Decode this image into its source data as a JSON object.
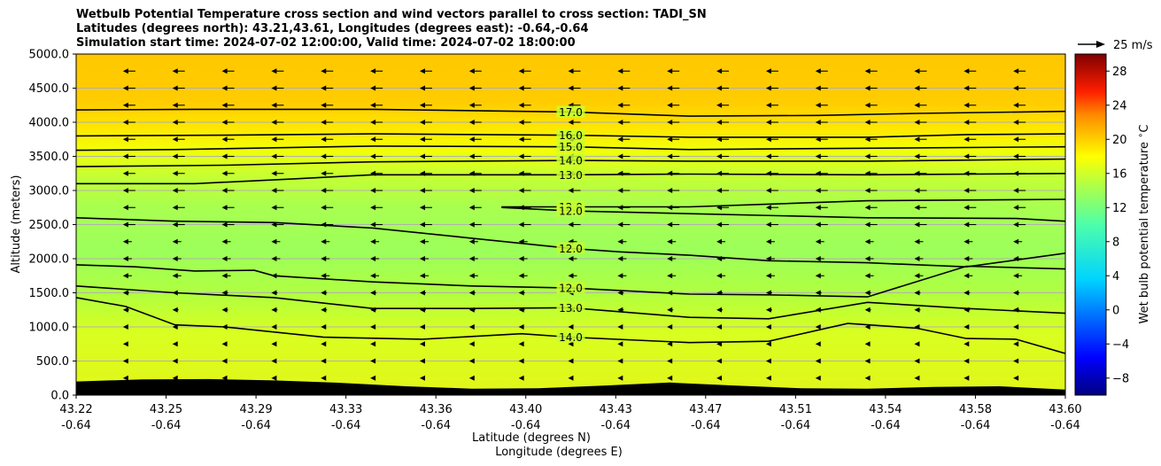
{
  "chart_data": {
    "type": "heatmap",
    "title_lines": [
      "Wetbulb Potential Temperature cross section and wind vectors parallel to cross section: TADI_SN",
      "Latitudes (degrees north): 43.21,43.61, Longitudes (degrees east): -0.64,-0.64",
      "Simulation start time: 2024-07-02 12:00:00, Valid time: 2024-07-02 18:00:00"
    ],
    "ylabel": "Altitude (meters)",
    "xlabel_lines": [
      "Latitude (degrees N)",
      "Longitude (degrees E)"
    ],
    "ylim": [
      0,
      5000
    ],
    "y_ticks": [
      "0.0",
      "500.0",
      "1000.0",
      "1500.0",
      "2000.0",
      "2500.0",
      "3000.0",
      "3500.0",
      "4000.0",
      "4500.0",
      "5000.0"
    ],
    "x_ticks_lat": [
      "43.22",
      "43.25",
      "43.29",
      "43.33",
      "43.36",
      "43.40",
      "43.43",
      "43.47",
      "43.51",
      "43.54",
      "43.58",
      "43.60"
    ],
    "x_ticks_lon": [
      "-0.64",
      "-0.64",
      "-0.64",
      "-0.64",
      "-0.64",
      "-0.64",
      "-0.64",
      "-0.64",
      "-0.64",
      "-0.64",
      "-0.64",
      "-0.64"
    ],
    "grid": "horizontal",
    "colorbar": {
      "label": "Wet bulb potential temperature $^\\circ$C",
      "min": -10,
      "max": 30,
      "tick_values": [
        -8,
        -4,
        0,
        4,
        8,
        12,
        16,
        20,
        24,
        28
      ],
      "tick_labels": [
        "−8",
        "−4",
        "0",
        "4",
        "8",
        "12",
        "16",
        "20",
        "24",
        "28"
      ]
    },
    "wind_key": {
      "label": "25 m/s",
      "speed": 25
    },
    "contours": [
      {
        "label": "17.0",
        "x": [
          0,
          0.12,
          0.3,
          0.5,
          0.62,
          0.75,
          0.85,
          1
        ],
        "y": [
          4180,
          4190,
          4190,
          4150,
          4090,
          4100,
          4130,
          4160
        ]
      },
      {
        "label": "16.0",
        "x": [
          0,
          0.15,
          0.3,
          0.5,
          0.62,
          0.8,
          0.9,
          1
        ],
        "y": [
          3800,
          3810,
          3830,
          3810,
          3780,
          3780,
          3820,
          3830
        ]
      },
      {
        "label": "15.0",
        "x": [
          0,
          0.1,
          0.3,
          0.5,
          0.62,
          0.8,
          1
        ],
        "y": [
          3590,
          3600,
          3650,
          3640,
          3600,
          3620,
          3640
        ]
      },
      {
        "label": "14.0",
        "x": [
          0,
          0.15,
          0.3,
          0.5,
          0.62,
          0.8,
          1
        ],
        "y": [
          3350,
          3370,
          3420,
          3440,
          3430,
          3430,
          3460
        ]
      },
      {
        "label": "13.0",
        "x": [
          0,
          0.12,
          0.22,
          0.3,
          0.5,
          0.62,
          0.8,
          1
        ],
        "y": [
          3100,
          3100,
          3170,
          3230,
          3230,
          3240,
          3230,
          3250
        ]
      },
      {
        "label": "12.0",
        "x": [
          0.43,
          0.5,
          0.62,
          0.7,
          0.8,
          0.9,
          1
        ],
        "y": [
          2760,
          2760,
          2760,
          2800,
          2850,
          2860,
          2870
        ]
      },
      {
        "label": "12.0",
        "x": [
          0.43,
          0.5,
          0.62,
          0.8,
          0.95,
          1
        ],
        "y": [
          2750,
          2700,
          2660,
          2600,
          2590,
          2550
        ]
      },
      {
        "label": "12.0",
        "x": [
          0,
          0.1,
          0.2,
          0.3,
          0.4,
          0.5,
          0.55,
          0.62,
          0.7,
          0.8,
          0.9,
          1
        ],
        "y": [
          2600,
          2550,
          2530,
          2450,
          2300,
          2150,
          2100,
          2050,
          1970,
          1940,
          1880,
          2080
        ]
      },
      {
        "label": "12.0",
        "x": [
          0,
          0.06,
          0.12,
          0.18,
          0.2,
          0.3,
          0.4,
          0.5,
          0.62,
          0.7,
          0.8,
          0.9,
          1
        ],
        "y": [
          1910,
          1880,
          1820,
          1830,
          1750,
          1660,
          1600,
          1570,
          1480,
          1470,
          1440,
          1890,
          1850
        ]
      },
      {
        "label": "13.0",
        "x": [
          0,
          0.1,
          0.2,
          0.3,
          0.4,
          0.5,
          0.62,
          0.7,
          0.8,
          0.9,
          1
        ],
        "y": [
          1600,
          1500,
          1430,
          1270,
          1270,
          1280,
          1140,
          1120,
          1360,
          1270,
          1200
        ]
      },
      {
        "label": "14.0",
        "x": [
          0,
          0.05,
          0.1,
          0.15,
          0.25,
          0.35,
          0.45,
          0.5,
          0.62,
          0.7,
          0.78,
          0.85,
          0.9,
          0.95,
          1
        ],
        "y": [
          1430,
          1300,
          1030,
          1000,
          850,
          820,
          900,
          850,
          770,
          790,
          1050,
          980,
          830,
          820,
          610
        ]
      }
    ],
    "terrain_height_m": [
      200,
      230,
      235,
      215,
      180,
      130,
      95,
      100,
      140,
      185,
      140,
      100,
      95,
      120,
      130,
      80
    ]
  }
}
